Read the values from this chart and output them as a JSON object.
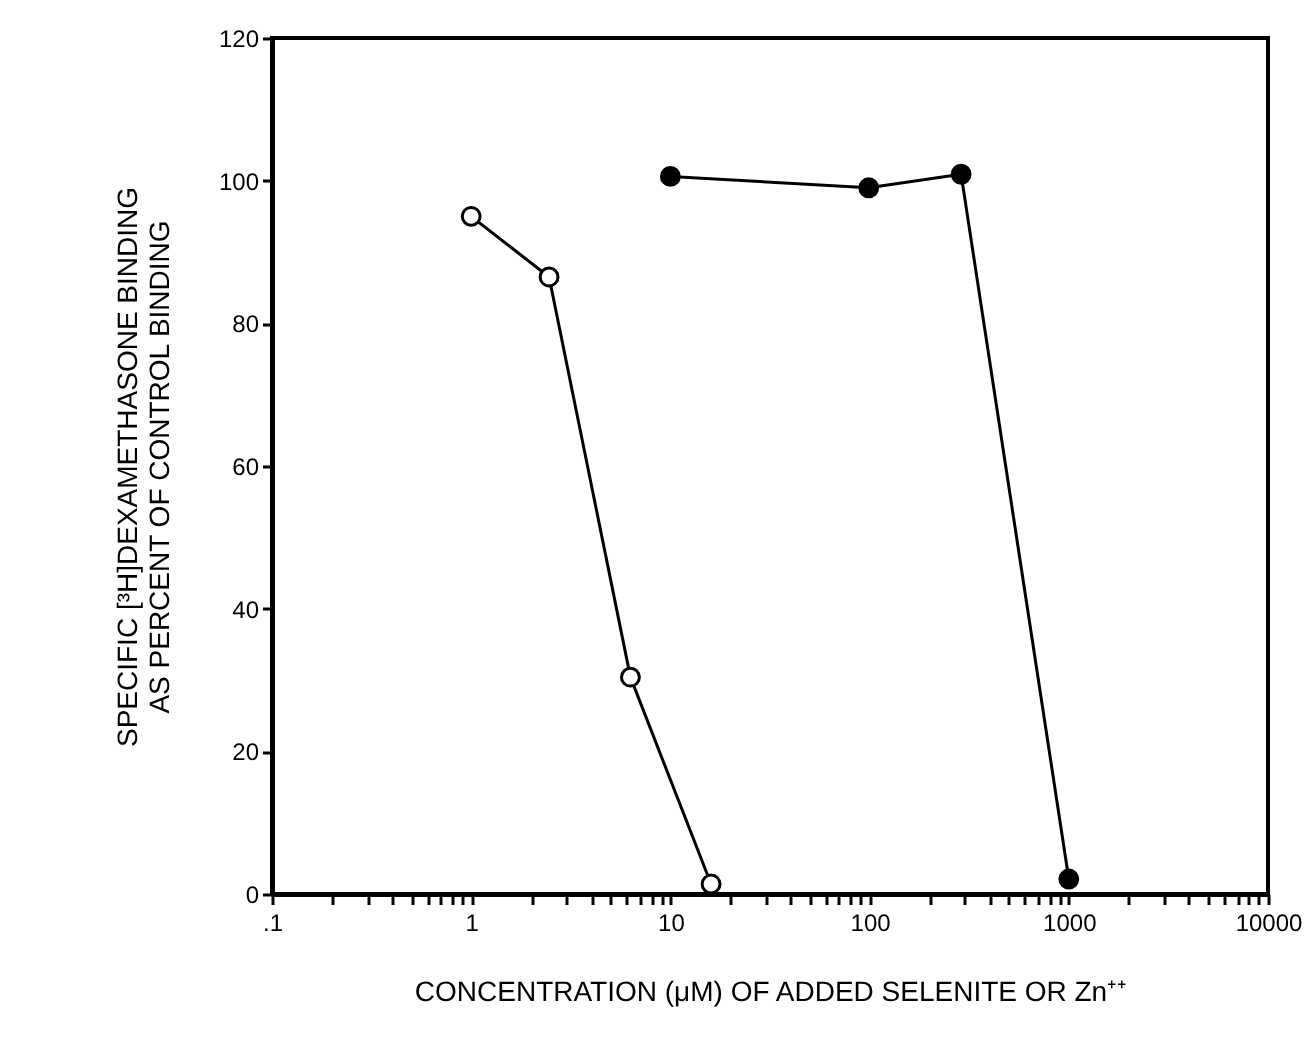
{
  "chart_data": {
    "type": "line",
    "xlabel": "CONCENTRATION (μM) OF ADDED SELENITE OR Zn⁺⁺",
    "ylabel": "SPECIFIC [³H]DEXAMETHASONE BINDING\nAS PERCENT OF CONTROL BINDING",
    "log": "x",
    "marker": "circle",
    "line_style": "solid",
    "grid": false,
    "xlim": [
      0.1,
      10000
    ],
    "xticks": [
      {
        "value": 0.1,
        "label": ".1"
      },
      {
        "value": 0.2,
        "label": null
      },
      {
        "value": 0.3,
        "label": null
      },
      {
        "value": 0.4,
        "label": null
      },
      {
        "value": 0.5,
        "label": null
      },
      {
        "value": 0.6,
        "label": null
      },
      {
        "value": 0.7,
        "label": null
      },
      {
        "value": 0.8,
        "label": null
      },
      {
        "value": 0.9,
        "label": null
      },
      1,
      {
        "value": 2,
        "label": null
      },
      {
        "value": 3,
        "label": null
      },
      {
        "value": 4,
        "label": null
      },
      {
        "value": 5,
        "label": null
      },
      {
        "value": 6,
        "label": null
      },
      {
        "value": 7,
        "label": null
      },
      {
        "value": 8,
        "label": null
      },
      {
        "value": 9,
        "label": null
      },
      10,
      {
        "value": 20,
        "label": null
      },
      {
        "value": 30,
        "label": null
      },
      {
        "value": 40,
        "label": null
      },
      {
        "value": 50,
        "label": null
      },
      {
        "value": 60,
        "label": null
      },
      {
        "value": 70,
        "label": null
      },
      {
        "value": 80,
        "label": null
      },
      {
        "value": 90,
        "label": null
      },
      100,
      {
        "value": 200,
        "label": null
      },
      {
        "value": 300,
        "label": null
      },
      {
        "value": 400,
        "label": null
      },
      {
        "value": 500,
        "label": null
      },
      {
        "value": 600,
        "label": null
      },
      {
        "value": 700,
        "label": null
      },
      {
        "value": 800,
        "label": null
      },
      {
        "value": 900,
        "label": null
      },
      1000,
      {
        "value": 2000,
        "label": null
      },
      {
        "value": 3000,
        "label": null
      },
      {
        "value": 4000,
        "label": null
      },
      {
        "value": 5000,
        "label": null
      },
      {
        "value": 6000,
        "label": null
      },
      {
        "value": 7000,
        "label": null
      },
      {
        "value": 8000,
        "label": null
      },
      {
        "value": 9000,
        "label": null
      },
      10000
    ],
    "ylim": [
      0,
      120
    ],
    "yticks": [
      0,
      20,
      40,
      60,
      80,
      100,
      120
    ],
    "series": [
      {
        "color": "#ffffff",
        "x": [
          1,
          2.46,
          6.3,
          16
        ],
        "values": [
          95,
          86.5,
          30.4,
          1.4
        ]
      },
      {
        "color": "#000000",
        "x": [
          10,
          99,
          288,
          1000
        ],
        "values": [
          100.6,
          99,
          100.9,
          2.1
        ]
      }
    ]
  }
}
